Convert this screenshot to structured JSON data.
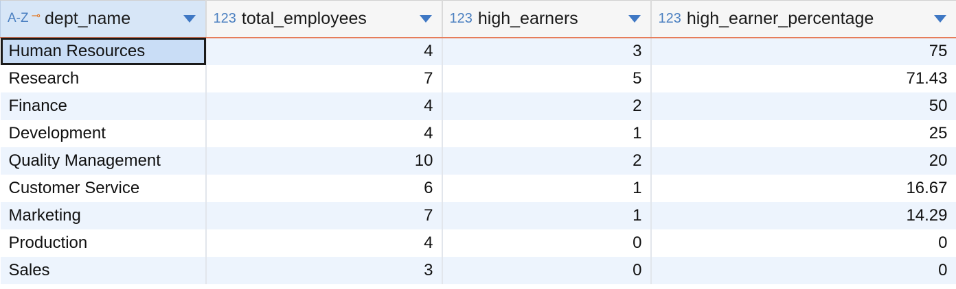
{
  "grid": {
    "columns": [
      {
        "type_label": "A-Z",
        "key_icon": "key-icon",
        "title": "dept_name",
        "sort_icon": "sort-desc-icon"
      },
      {
        "type_label": "123",
        "title": "total_employees",
        "sort_icon": "sort-desc-icon"
      },
      {
        "type_label": "123",
        "title": "high_earners",
        "sort_icon": "sort-desc-icon"
      },
      {
        "type_label": "123",
        "title": "high_earner_percentage",
        "sort_icon": "sort-desc-icon"
      }
    ],
    "rows": [
      [
        "Human Resources",
        "4",
        "3",
        "75"
      ],
      [
        "Research",
        "7",
        "5",
        "71.43"
      ],
      [
        "Finance",
        "4",
        "2",
        "50"
      ],
      [
        "Development",
        "4",
        "1",
        "25"
      ],
      [
        "Quality Management",
        "10",
        "2",
        "20"
      ],
      [
        "Customer Service",
        "6",
        "1",
        "16.67"
      ],
      [
        "Marketing",
        "7",
        "1",
        "14.29"
      ],
      [
        "Production",
        "4",
        "0",
        "0"
      ],
      [
        "Sales",
        "3",
        "0",
        "0"
      ]
    ],
    "selected_cell": "Human Resources",
    "colors": {
      "header_active": "#d7e6f7",
      "header_underline": "#e77d5a",
      "row_stripe": "#edf4fd",
      "type_icon": "#4a7fc0",
      "sort_icon": "#3f78c4"
    }
  }
}
